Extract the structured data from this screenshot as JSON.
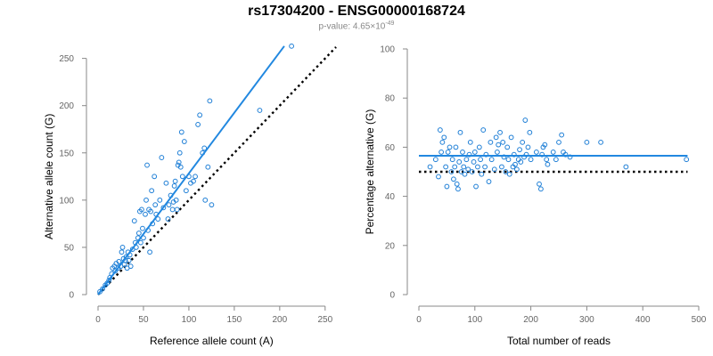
{
  "figure": {
    "title": "rs17304200 - ENSG00000168724",
    "pvalue_prefix": "p-value: 4.65×10",
    "pvalue_exponent": "-49"
  },
  "colors": {
    "points": "#1f7fd6",
    "fit_line": "#2288e0",
    "null_line": "#000000",
    "axis": "#888888"
  },
  "chart_data": [
    {
      "type": "scatter",
      "xlabel": "Reference allele count (A)",
      "ylabel": "Alternative allele count (G)",
      "xlim": [
        0,
        260
      ],
      "ylim": [
        0,
        260
      ],
      "xticks": [
        0,
        50,
        100,
        150,
        200,
        250
      ],
      "yticks": [
        0,
        50,
        100,
        150,
        200,
        250
      ],
      "fit_line": [
        [
          0,
          0
        ],
        [
          205,
          263
        ]
      ],
      "null_line": [
        [
          0,
          0
        ],
        [
          262,
          262
        ]
      ],
      "points": [
        [
          2,
          3
        ],
        [
          5,
          6
        ],
        [
          8,
          10
        ],
        [
          10,
          12
        ],
        [
          12,
          15
        ],
        [
          13,
          18
        ],
        [
          15,
          22
        ],
        [
          16,
          28
        ],
        [
          18,
          30
        ],
        [
          19,
          25
        ],
        [
          20,
          33
        ],
        [
          22,
          28
        ],
        [
          23,
          35
        ],
        [
          25,
          30
        ],
        [
          26,
          45
        ],
        [
          27,
          50
        ],
        [
          28,
          38
        ],
        [
          29,
          32
        ],
        [
          30,
          36
        ],
        [
          31,
          40
        ],
        [
          32,
          28
        ],
        [
          33,
          45
        ],
        [
          34,
          36
        ],
        [
          35,
          42
        ],
        [
          36,
          30
        ],
        [
          38,
          48
        ],
        [
          40,
          78
        ],
        [
          41,
          55
        ],
        [
          42,
          50
        ],
        [
          44,
          60
        ],
        [
          45,
          65
        ],
        [
          46,
          88
        ],
        [
          47,
          55
        ],
        [
          48,
          90
        ],
        [
          49,
          70
        ],
        [
          50,
          60
        ],
        [
          52,
          85
        ],
        [
          53,
          100
        ],
        [
          54,
          137
        ],
        [
          55,
          68
        ],
        [
          56,
          90
        ],
        [
          57,
          45
        ],
        [
          58,
          88
        ],
        [
          59,
          110
        ],
        [
          60,
          75
        ],
        [
          62,
          125
        ],
        [
          63,
          95
        ],
        [
          64,
          85
        ],
        [
          66,
          80
        ],
        [
          68,
          100
        ],
        [
          70,
          145
        ],
        [
          72,
          92
        ],
        [
          75,
          118
        ],
        [
          77,
          80
        ],
        [
          78,
          95
        ],
        [
          80,
          105
        ],
        [
          82,
          90
        ],
        [
          83,
          98
        ],
        [
          84,
          115
        ],
        [
          85,
          120
        ],
        [
          86,
          100
        ],
        [
          87,
          90
        ],
        [
          88,
          137
        ],
        [
          89,
          140
        ],
        [
          90,
          150
        ],
        [
          91,
          135
        ],
        [
          92,
          172
        ],
        [
          93,
          125
        ],
        [
          95,
          162
        ],
        [
          97,
          110
        ],
        [
          100,
          125
        ],
        [
          102,
          118
        ],
        [
          105,
          120
        ],
        [
          107,
          125
        ],
        [
          110,
          180
        ],
        [
          112,
          190
        ],
        [
          115,
          150
        ],
        [
          117,
          155
        ],
        [
          118,
          100
        ],
        [
          121,
          135
        ],
        [
          123,
          205
        ],
        [
          125,
          95
        ],
        [
          178,
          195
        ],
        [
          213,
          263
        ]
      ]
    },
    {
      "type": "scatter",
      "xlabel": "Total number of reads",
      "ylabel": "Percentage alternative (G)",
      "xlim": [
        0,
        500
      ],
      "ylim": [
        0,
        100
      ],
      "xticks": [
        0,
        100,
        200,
        300,
        400,
        500
      ],
      "yticks": [
        0,
        20,
        40,
        60,
        80,
        100
      ],
      "fit_line": [
        [
          0,
          56.5
        ],
        [
          480,
          56.5
        ]
      ],
      "null_line": [
        [
          0,
          50
        ],
        [
          480,
          50
        ]
      ],
      "points": [
        [
          20,
          52
        ],
        [
          30,
          55
        ],
        [
          35,
          48
        ],
        [
          38,
          67
        ],
        [
          40,
          58
        ],
        [
          42,
          62
        ],
        [
          45,
          64
        ],
        [
          48,
          52
        ],
        [
          50,
          44
        ],
        [
          52,
          58
        ],
        [
          55,
          60
        ],
        [
          58,
          50
        ],
        [
          60,
          55
        ],
        [
          62,
          47
        ],
        [
          64,
          52
        ],
        [
          66,
          60
        ],
        [
          68,
          45
        ],
        [
          70,
          43
        ],
        [
          72,
          54
        ],
        [
          74,
          66
        ],
        [
          76,
          50
        ],
        [
          78,
          58
        ],
        [
          80,
          52
        ],
        [
          82,
          49
        ],
        [
          85,
          55
        ],
        [
          88,
          51
        ],
        [
          90,
          57
        ],
        [
          92,
          62
        ],
        [
          95,
          50
        ],
        [
          98,
          54
        ],
        [
          100,
          58
        ],
        [
          102,
          44
        ],
        [
          105,
          52
        ],
        [
          108,
          60
        ],
        [
          110,
          55
        ],
        [
          112,
          49
        ],
        [
          115,
          67
        ],
        [
          118,
          52
        ],
        [
          120,
          57
        ],
        [
          125,
          46
        ],
        [
          128,
          62
        ],
        [
          130,
          55
        ],
        [
          135,
          51
        ],
        [
          138,
          64
        ],
        [
          140,
          58
        ],
        [
          142,
          61
        ],
        [
          145,
          66
        ],
        [
          148,
          52
        ],
        [
          150,
          62
        ],
        [
          152,
          56
        ],
        [
          155,
          50
        ],
        [
          158,
          60
        ],
        [
          160,
          55
        ],
        [
          162,
          49
        ],
        [
          165,
          64
        ],
        [
          168,
          52
        ],
        [
          170,
          57
        ],
        [
          172,
          53
        ],
        [
          175,
          51
        ],
        [
          178,
          55
        ],
        [
          180,
          59
        ],
        [
          182,
          54
        ],
        [
          185,
          62
        ],
        [
          188,
          56
        ],
        [
          190,
          71
        ],
        [
          192,
          57
        ],
        [
          195,
          60
        ],
        [
          198,
          66
        ],
        [
          200,
          55
        ],
        [
          210,
          58
        ],
        [
          215,
          45
        ],
        [
          218,
          43
        ],
        [
          220,
          57
        ],
        [
          222,
          60
        ],
        [
          225,
          61
        ],
        [
          228,
          55
        ],
        [
          230,
          53
        ],
        [
          240,
          58
        ],
        [
          245,
          55
        ],
        [
          250,
          62
        ],
        [
          255,
          65
        ],
        [
          258,
          58
        ],
        [
          262,
          57
        ],
        [
          270,
          56
        ],
        [
          300,
          62
        ],
        [
          325,
          62
        ],
        [
          370,
          52
        ],
        [
          478,
          55
        ]
      ]
    }
  ]
}
